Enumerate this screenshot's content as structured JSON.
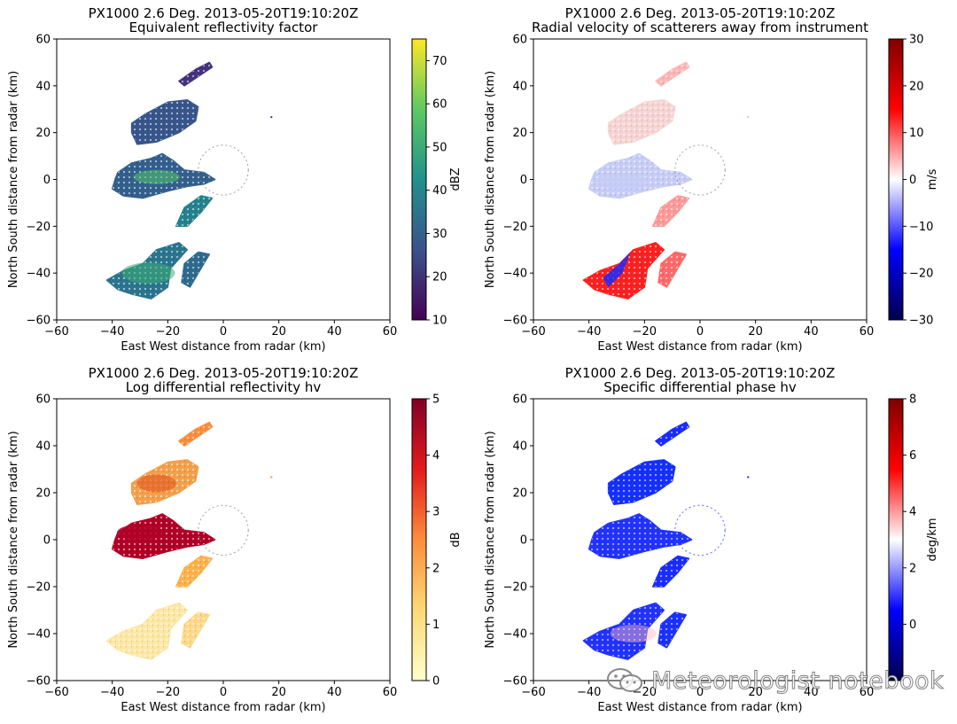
{
  "watermark": {
    "text": "Meteorologist notebook",
    "icon": "wechat-logo-icon"
  },
  "chart_data": [
    {
      "type": "radar-ppi",
      "title": "PX1000 2.6 Deg. 2013-05-20T19:10:20Z",
      "subtitle": "Equivalent reflectivity factor",
      "xlabel": "East West distance from radar (km)",
      "ylabel": "North South distance from radar (km)",
      "xlim": [
        -60,
        60
      ],
      "ylim": [
        -60,
        60
      ],
      "xticks": [
        "−60",
        "−40",
        "−20",
        "0",
        "20",
        "40",
        "60"
      ],
      "yticks": [
        "60",
        "40",
        "20",
        "0",
        "−20",
        "−40",
        "−60"
      ],
      "colorbar": {
        "label": "dBZ",
        "min": 10,
        "max": 75,
        "ticks": [
          "70",
          "60",
          "50",
          "40",
          "30",
          "20",
          "10"
        ],
        "colormap": "viridis"
      },
      "field": "reflectivity"
    },
    {
      "type": "radar-ppi",
      "title": "PX1000 2.6 Deg. 2013-05-20T19:10:20Z",
      "subtitle": "Radial velocity of scatterers away from instrument",
      "xlabel": "East West distance from radar (km)",
      "ylabel": "North South distance from radar (km)",
      "xlim": [
        -60,
        60
      ],
      "ylim": [
        -60,
        60
      ],
      "xticks": [
        "−60",
        "−40",
        "−20",
        "0",
        "20",
        "40",
        "60"
      ],
      "yticks": [
        "60",
        "40",
        "20",
        "0",
        "−20",
        "−40",
        "−60"
      ],
      "colorbar": {
        "label": "m/s",
        "min": -30,
        "max": 30,
        "ticks": [
          "30",
          "20",
          "10",
          "0",
          "−10",
          "−20",
          "−30"
        ],
        "colormap": "seismic"
      },
      "field": "velocity"
    },
    {
      "type": "radar-ppi",
      "title": "PX1000 2.6 Deg. 2013-05-20T19:10:20Z",
      "subtitle": "Log differential reflectivity hv",
      "xlabel": "East West distance from radar (km)",
      "ylabel": "North South distance from radar (km)",
      "xlim": [
        -60,
        60
      ],
      "ylim": [
        -60,
        60
      ],
      "xticks": [
        "−60",
        "−40",
        "−20",
        "0",
        "20",
        "40",
        "60"
      ],
      "yticks": [
        "60",
        "40",
        "20",
        "0",
        "−20",
        "−40",
        "−60"
      ],
      "colorbar": {
        "label": "dB",
        "min": 0,
        "max": 5,
        "ticks": [
          "5",
          "4",
          "3",
          "2",
          "1",
          "0"
        ],
        "colormap": "YlOrRd"
      },
      "field": "zdr"
    },
    {
      "type": "radar-ppi",
      "title": "PX1000 2.6 Deg. 2013-05-20T19:10:20Z",
      "subtitle": "Specific differential phase hv",
      "xlabel": "East West distance from radar (km)",
      "ylabel": "North South distance from radar (km)",
      "xlim": [
        -60,
        60
      ],
      "ylim": [
        -60,
        60
      ],
      "xticks": [
        "−60",
        "−40",
        "−20",
        "0",
        "20",
        "40",
        "60"
      ],
      "yticks": [
        "60",
        "40",
        "20",
        "0",
        "−20",
        "−40",
        "−60"
      ],
      "colorbar": {
        "label": "deg/km",
        "min": -2,
        "max": 8,
        "ticks": [
          "8",
          "6",
          "4",
          "2",
          "0"
        ],
        "colormap": "seismic"
      },
      "field": "kdp"
    }
  ]
}
